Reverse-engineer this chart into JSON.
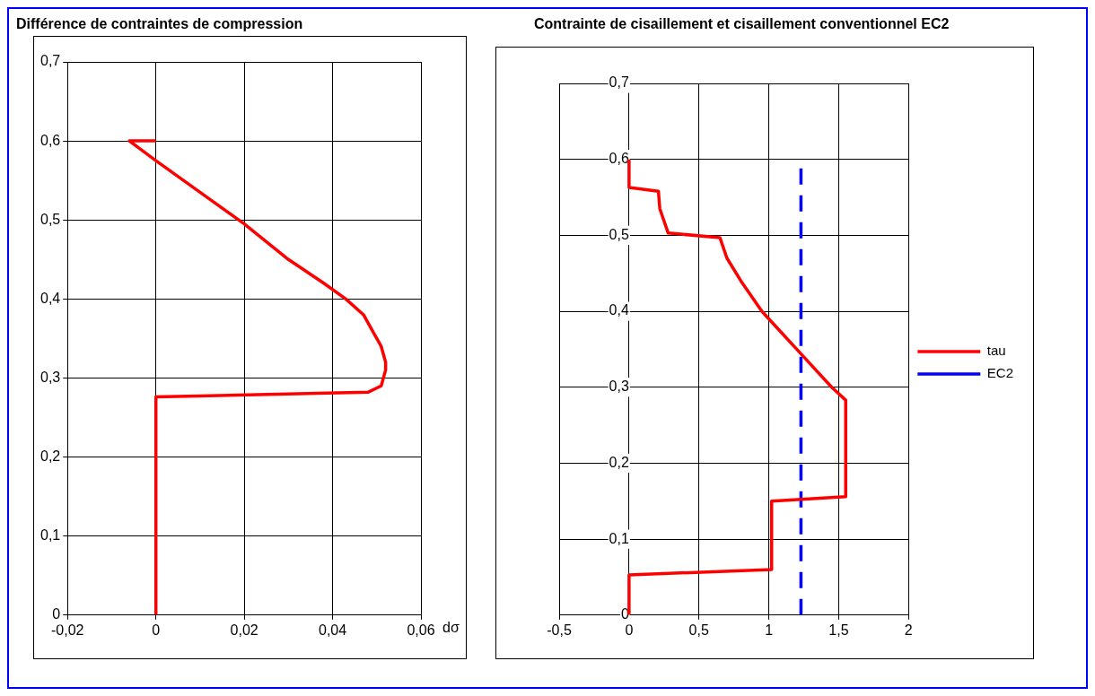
{
  "chart_data": [
    {
      "type": "line",
      "title": "Différence de contraintes de compression",
      "xlabel": "dσ",
      "grid": true,
      "marker": "none",
      "legend": false,
      "xlim": [
        -0.02,
        0.06
      ],
      "xticks": [
        {
          "value": -0.02,
          "label": "-0,02"
        },
        0,
        {
          "value": 0.02,
          "label": "0,02"
        },
        {
          "value": 0.04,
          "label": "0,04"
        },
        {
          "value": 0.06,
          "label": "0,06"
        }
      ],
      "ylim": [
        0,
        0.7
      ],
      "yticks": [
        0,
        {
          "value": 0.1,
          "label": "0,1"
        },
        {
          "value": 0.2,
          "label": "0,2"
        },
        {
          "value": 0.3,
          "label": "0,3"
        },
        {
          "value": 0.4,
          "label": "0,4"
        },
        {
          "value": 0.5,
          "label": "0,5"
        },
        {
          "value": 0.6,
          "label": "0,6"
        },
        {
          "value": 0.7,
          "label": "0,7"
        }
      ],
      "series": [
        {
          "color": "#ff0000",
          "line_style": "solid",
          "x": [
            0,
            0,
            0.048,
            0.051,
            0.052,
            0.052,
            0.051,
            0.049,
            0.047,
            0.043,
            0.038,
            0.03,
            0.02,
            0.01,
            0,
            -0.006,
            0
          ],
          "values": [
            0,
            0.276,
            0.282,
            0.29,
            0.31,
            0.32,
            0.34,
            0.36,
            0.38,
            0.4,
            0.42,
            0.45,
            0.495,
            0.535,
            0.575,
            0.6,
            0.6
          ]
        }
      ]
    },
    {
      "type": "line",
      "title": "Contrainte de cisaillement et cisaillement conventionnel EC2",
      "grid": true,
      "marker": "none",
      "legend": "right",
      "xlim": [
        -0.5,
        2
      ],
      "xticks": [
        {
          "value": -0.5,
          "label": "-0,5"
        },
        0,
        {
          "value": 0.5,
          "label": "0,5"
        },
        1,
        {
          "value": 1.5,
          "label": "1,5"
        },
        2
      ],
      "ylim": [
        0,
        0.7
      ],
      "yticks": [
        0,
        {
          "value": 0.1,
          "label": "0,1"
        },
        {
          "value": 0.2,
          "label": "0,2"
        },
        {
          "value": 0.3,
          "label": "0,3"
        },
        {
          "value": 0.4,
          "label": "0,4"
        },
        {
          "value": 0.5,
          "label": "0,5"
        },
        {
          "value": 0.6,
          "label": "0,6"
        },
        {
          "value": 0.7,
          "label": "0,7"
        }
      ],
      "series": [
        {
          "name": "tau",
          "color": "#ff0000",
          "line_style": "solid",
          "x": [
            0,
            0,
            1.02,
            1.02,
            1.55,
            1.55,
            1.45,
            1.25,
            1.1,
            0.95,
            0.8,
            0.7,
            0.65,
            0.28,
            0.22,
            0.21,
            0,
            0
          ],
          "values": [
            0,
            0.053,
            0.06,
            0.15,
            0.156,
            0.283,
            0.3,
            0.34,
            0.37,
            0.4,
            0.44,
            0.47,
            0.497,
            0.503,
            0.535,
            0.558,
            0.563,
            0.6
          ]
        },
        {
          "name": "EC2",
          "color": "#0000ff",
          "line_style": "dashed",
          "x": [
            1.23,
            1.23
          ],
          "values": [
            0,
            0.59
          ]
        }
      ]
    }
  ]
}
